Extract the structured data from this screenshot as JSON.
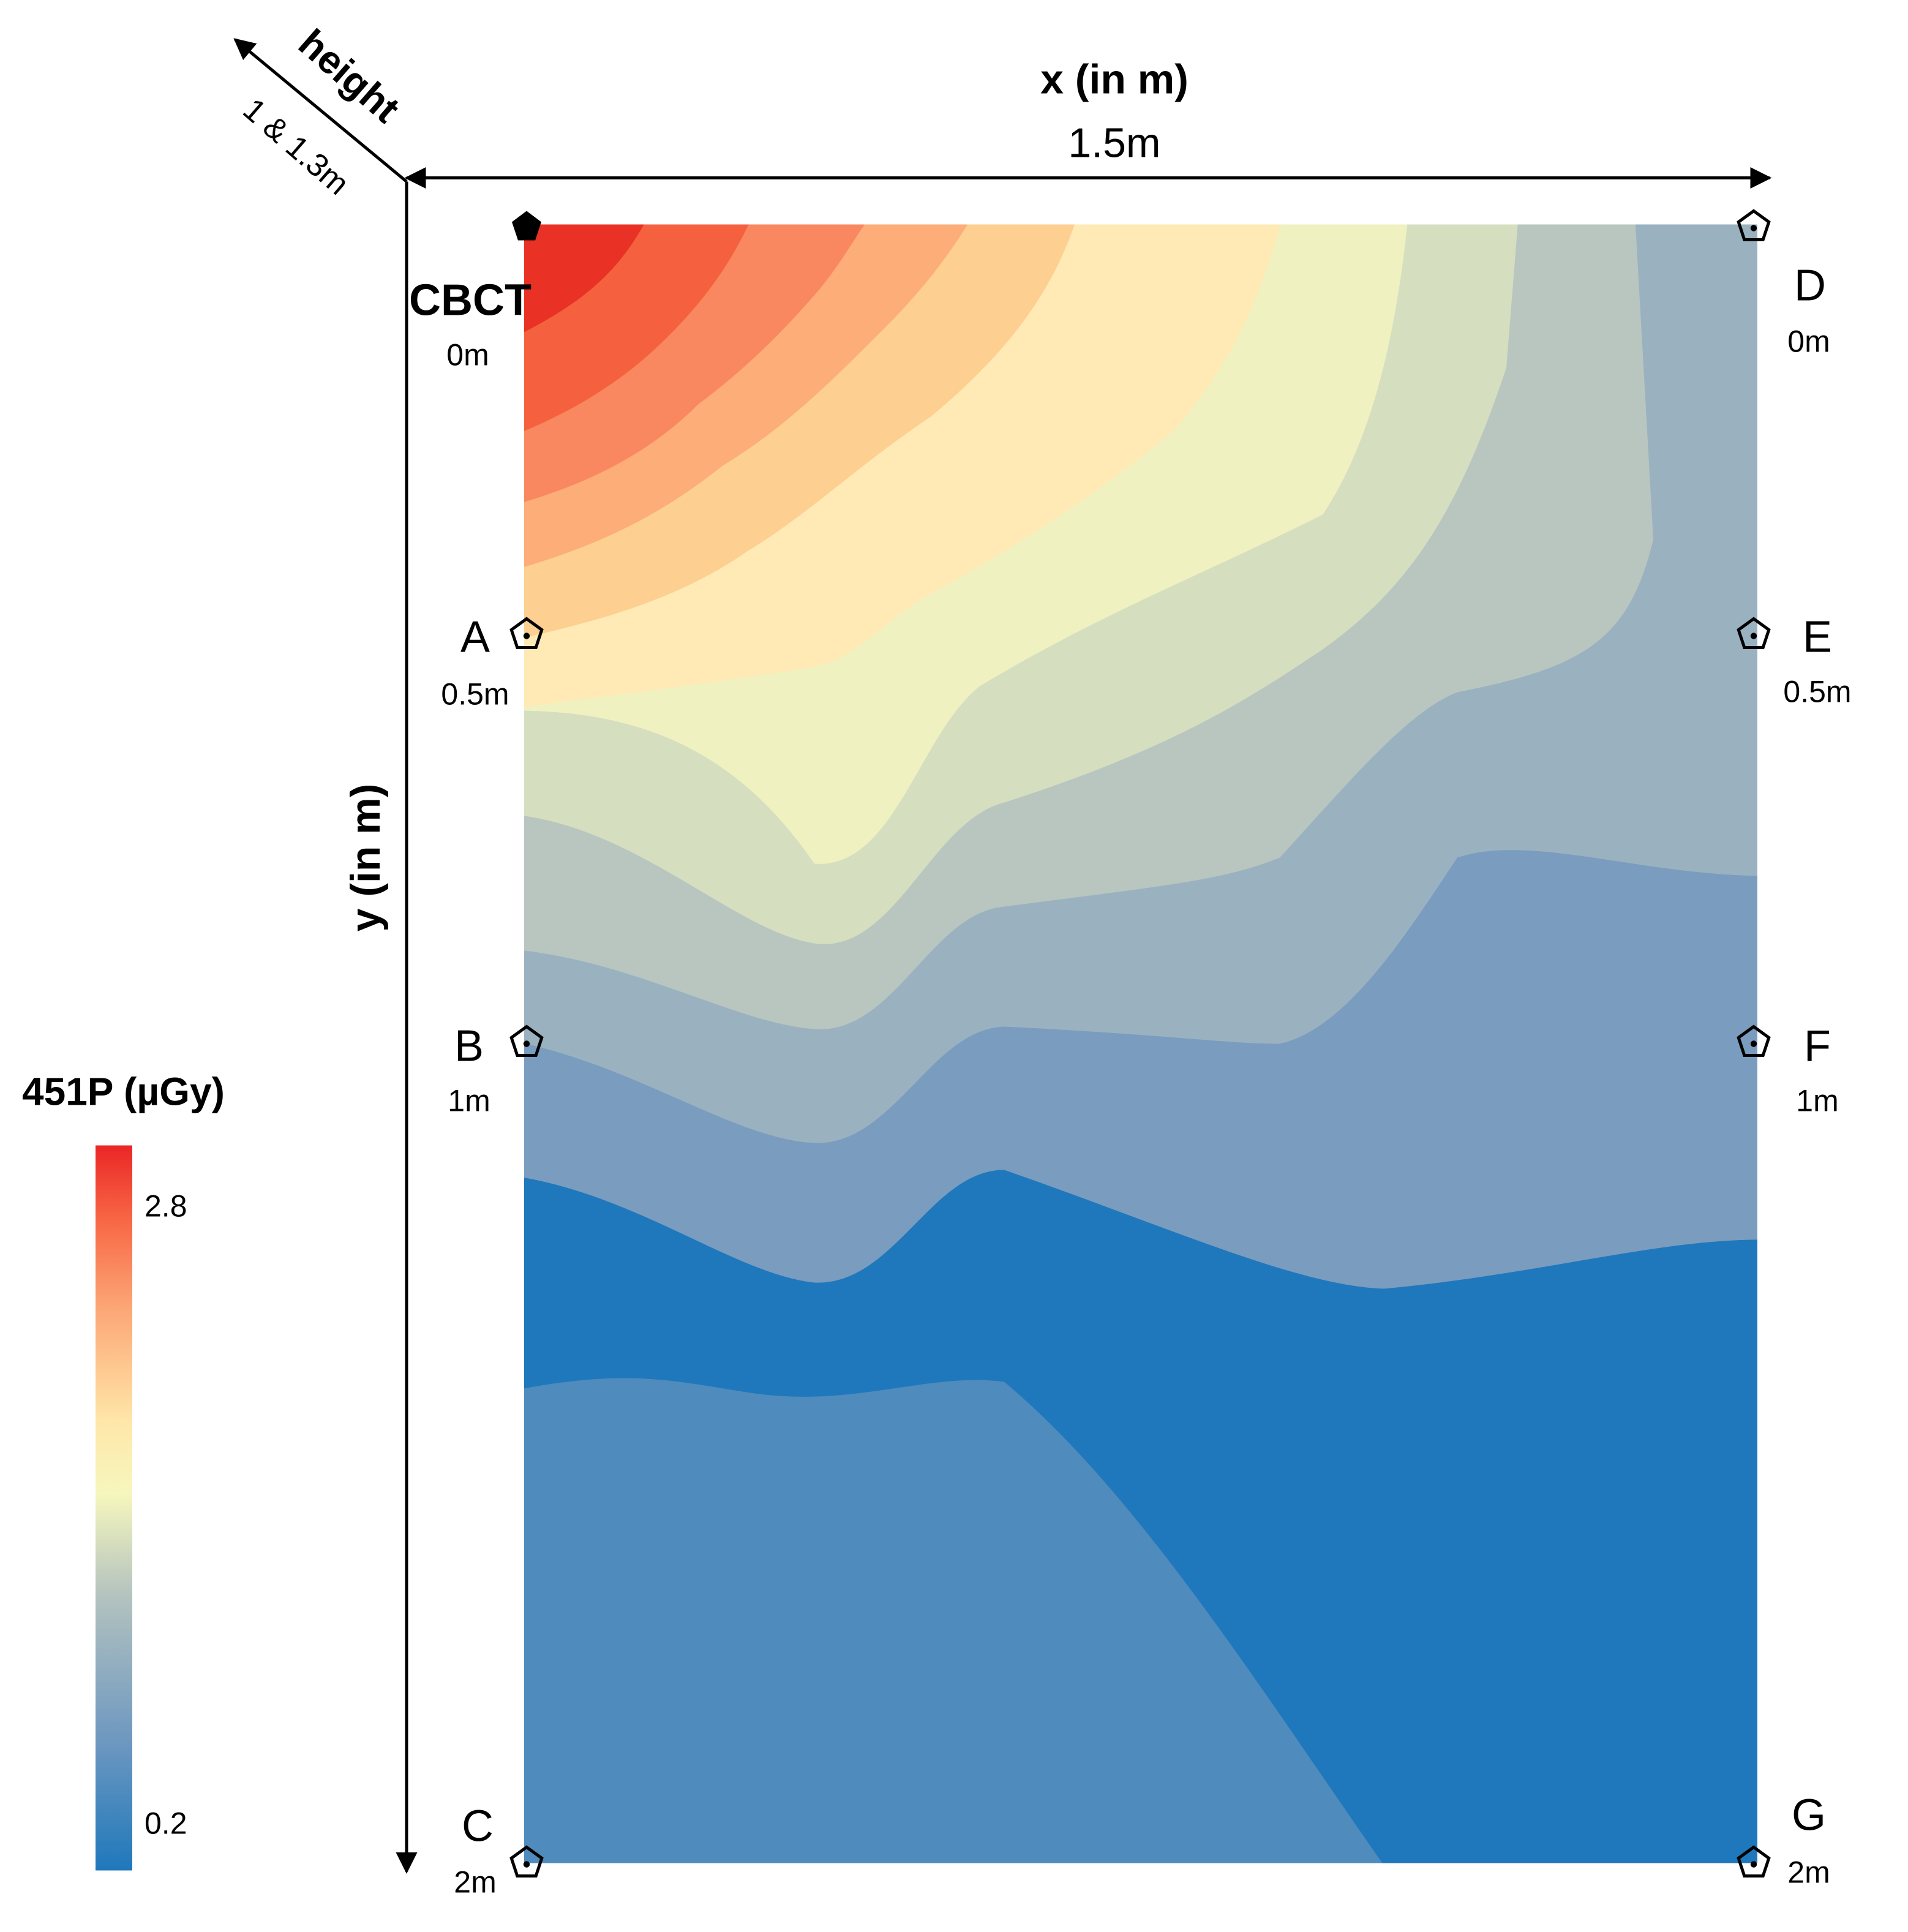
{
  "chart_data": {
    "type": "heatmap",
    "subtype": "filled-contour",
    "x_axis": {
      "label": "x (in m)",
      "span_label": "1.5m"
    },
    "y_axis": {
      "label": "y (in m)"
    },
    "height_axis": {
      "label": "height",
      "value_label": "1 & 1.3m"
    },
    "colorbar": {
      "title": "451P (µGy)",
      "tick_labels": [
        "2.8",
        "0.2"
      ],
      "colors_low_to_high": [
        "#1f78bb",
        "#4f8bbd",
        "#7a9cbf",
        "#9ab2c0",
        "#b9c6c0",
        "#d6dec0",
        "#f0f1c0",
        "#ffeab5",
        "#fdcf90",
        "#fcad78",
        "#f98860",
        "#f5613f",
        "#e93125"
      ]
    },
    "source_point": {
      "label": "CBCT",
      "distance": "0m"
    },
    "points": [
      {
        "label": "A",
        "distance": "0.5m"
      },
      {
        "label": "B",
        "distance": "1m"
      },
      {
        "label": "C",
        "distance": "2m"
      },
      {
        "label": "D",
        "distance": "0m"
      },
      {
        "label": "E",
        "distance": "0.5m"
      },
      {
        "label": "F",
        "distance": "1m"
      },
      {
        "label": "G",
        "distance": "2m"
      }
    ],
    "levels": [
      "band-01",
      "band-02",
      "band-03",
      "band-04",
      "band-05",
      "band-06",
      "band-07",
      "band-08",
      "band-09",
      "band-10",
      "band-11",
      "band-12",
      "band-13"
    ]
  }
}
